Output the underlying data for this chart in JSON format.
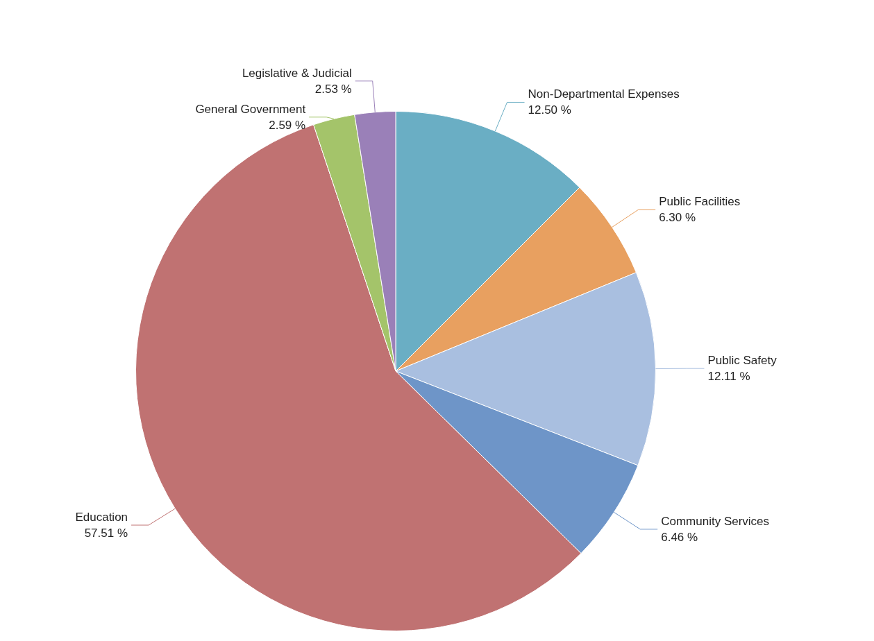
{
  "chart_data": {
    "type": "pie",
    "categories": [
      "Non-Departmental Expenses",
      "Public Facilities",
      "Public Safety",
      "Community Services",
      "Education",
      "General Government",
      "Legislative & Judicial"
    ],
    "values": [
      12.5,
      6.3,
      12.11,
      6.46,
      57.51,
      2.59,
      2.53
    ],
    "value_labels": [
      "12.50 %",
      "6.30 %",
      "12.11 %",
      "6.46 %",
      "57.51 %",
      "2.59 %",
      "2.53 %"
    ],
    "colors": [
      "#6aaec4",
      "#e8a060",
      "#a9bfe0",
      "#6e95c8",
      "#c07272",
      "#a4c46a",
      "#9a80b8"
    ],
    "legend": false
  }
}
